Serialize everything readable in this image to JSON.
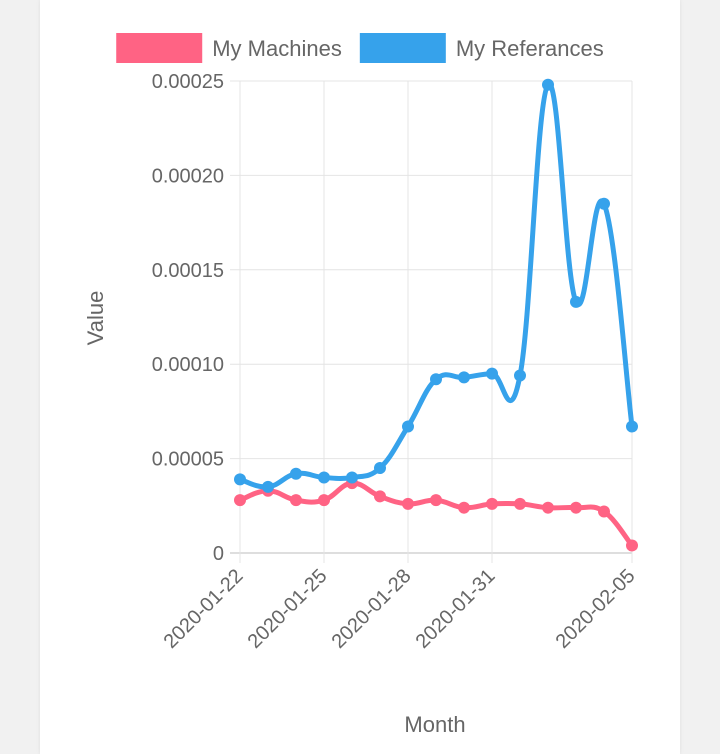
{
  "chart_data": {
    "type": "line",
    "title": "",
    "xlabel": "Month",
    "ylabel": "Value",
    "ylim": [
      0,
      0.00025
    ],
    "y_ticks": [
      "0",
      "0.00005",
      "0.00010",
      "0.00015",
      "0.00020",
      "0.00025"
    ],
    "x_tick_labels": [
      "2020-01-22",
      "2020-01-25",
      "2020-01-28",
      "2020-01-31",
      "2020-02-05"
    ],
    "x": [
      "2020-01-22",
      "2020-01-23",
      "2020-01-24",
      "2020-01-25",
      "2020-01-26",
      "2020-01-27",
      "2020-01-28",
      "2020-01-29",
      "2020-01-30",
      "2020-01-31",
      "2020-02-01",
      "2020-02-02",
      "2020-02-03",
      "2020-02-04",
      "2020-02-05"
    ],
    "series": [
      {
        "name": "My Machines",
        "color": "#ff6384",
        "values": [
          2.8e-05,
          3.3e-05,
          2.8e-05,
          2.8e-05,
          3.7e-05,
          3e-05,
          2.6e-05,
          2.8e-05,
          2.4e-05,
          2.6e-05,
          2.6e-05,
          2.4e-05,
          2.4e-05,
          2.2e-05,
          4e-06
        ]
      },
      {
        "name": "My Referances",
        "color": "#36a2eb",
        "values": [
          3.9e-05,
          3.5e-05,
          4.2e-05,
          4e-05,
          4e-05,
          4.5e-05,
          6.7e-05,
          9.2e-05,
          9.3e-05,
          9.5e-05,
          9.4e-05,
          0.000248,
          0.000133,
          0.000185,
          6.7e-05
        ]
      }
    ],
    "legend_position": "top",
    "grid": true
  }
}
